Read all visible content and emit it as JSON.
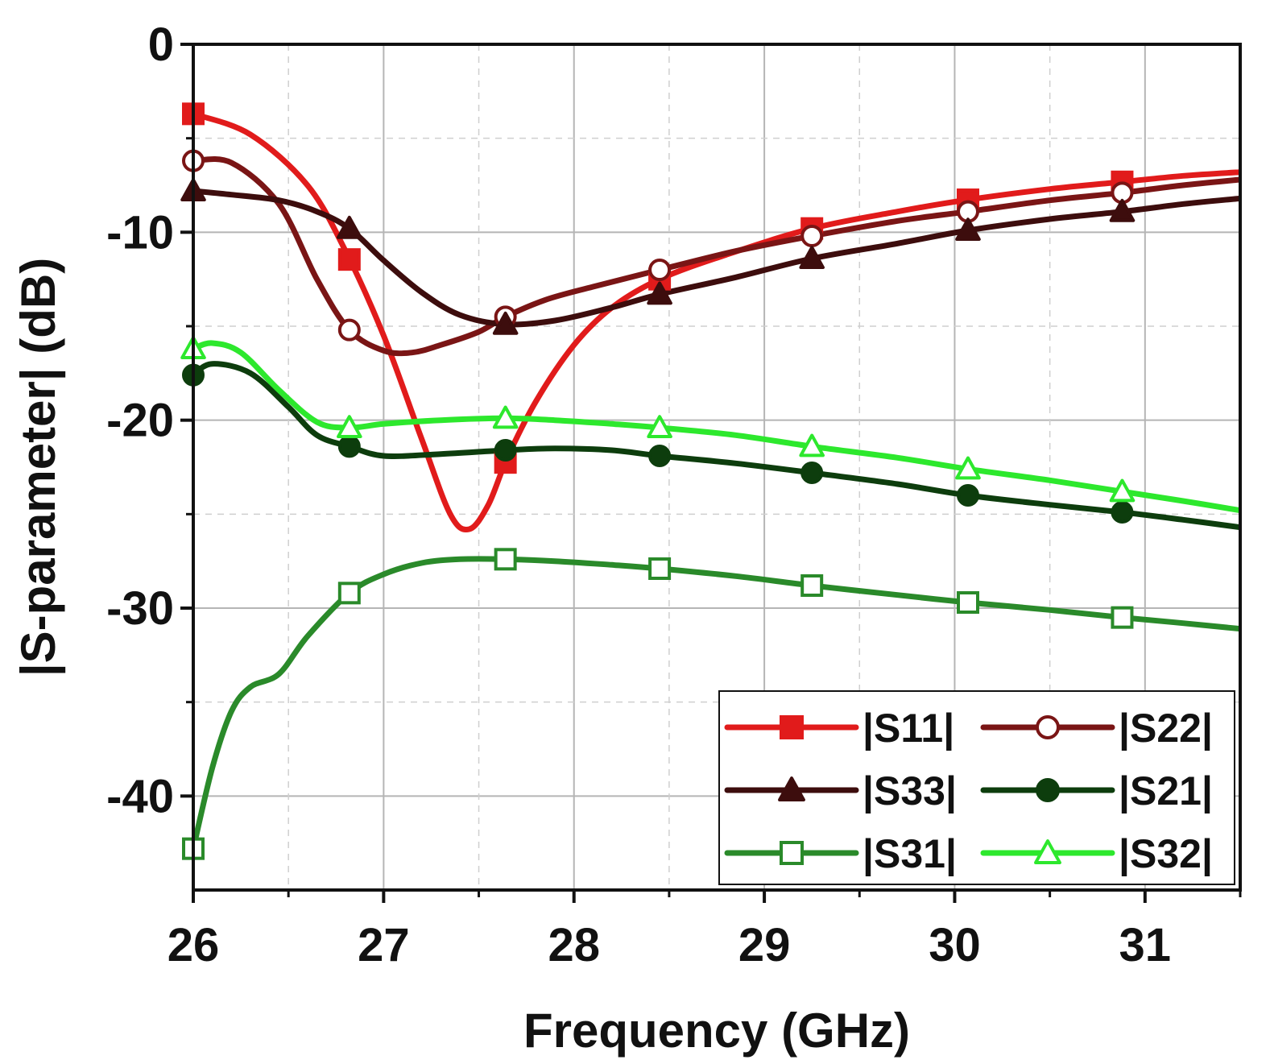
{
  "chart_data": {
    "type": "line",
    "title": "",
    "xlabel": "Frequency (GHz)",
    "ylabel": "|S-parameter| (dB)",
    "xlim": [
      26,
      31.5
    ],
    "ylim": [
      -45,
      0
    ],
    "xticks": [
      26,
      27,
      28,
      29,
      30,
      31
    ],
    "yticks": [
      0,
      -10,
      -20,
      -30,
      -40
    ],
    "x_minor_grid": [
      26.5,
      27.5,
      28.5,
      29.5,
      30.5,
      31.5
    ],
    "y_minor_grid": [
      -5,
      -15,
      -25,
      -35
    ],
    "grid": true,
    "legend": {
      "placement": "bottom-right",
      "columns": 2
    },
    "series": [
      {
        "name": "|S11|",
        "color": "#e11b1b",
        "marker": "square",
        "marker_fill": "filled",
        "x": [
          26.0,
          26.3,
          26.6,
          26.8,
          27.0,
          27.2,
          27.35,
          27.45,
          27.55,
          27.65,
          27.8,
          28.0,
          28.2,
          28.45,
          28.8,
          29.25,
          29.7,
          30.05,
          30.5,
          30.9,
          31.2,
          31.5
        ],
        "y": [
          -3.7,
          -4.8,
          -7.5,
          -11.0,
          -15.5,
          -21.0,
          -25.0,
          -25.8,
          -24.5,
          -22.0,
          -19.0,
          -16.0,
          -14.0,
          -12.5,
          -11.2,
          -9.8,
          -8.9,
          -8.3,
          -7.7,
          -7.3,
          -7.0,
          -6.8
        ],
        "marker_x": [
          26.0,
          26.82,
          27.64,
          28.45,
          29.25,
          30.07,
          30.88
        ]
      },
      {
        "name": "|S22|",
        "color": "#7a1515",
        "marker": "circle",
        "marker_fill": "open",
        "x": [
          26.0,
          26.2,
          26.45,
          26.65,
          26.82,
          27.0,
          27.15,
          27.3,
          27.5,
          27.64,
          27.85,
          28.1,
          28.45,
          28.85,
          29.25,
          29.7,
          30.07,
          30.5,
          30.88,
          31.2,
          31.5
        ],
        "y": [
          -6.2,
          -6.3,
          -8.5,
          -12.5,
          -15.2,
          -16.3,
          -16.4,
          -16.0,
          -15.3,
          -14.5,
          -13.6,
          -12.9,
          -12.0,
          -11.0,
          -10.2,
          -9.4,
          -8.9,
          -8.3,
          -7.9,
          -7.5,
          -7.2
        ],
        "marker_x": [
          26.0,
          26.82,
          27.64,
          28.45,
          29.25,
          30.07,
          30.88
        ]
      },
      {
        "name": "|S33|",
        "color": "#3d0d0d",
        "marker": "triangle",
        "marker_fill": "filled",
        "x": [
          26.0,
          26.2,
          26.45,
          26.65,
          26.82,
          27.0,
          27.2,
          27.4,
          27.64,
          27.9,
          28.2,
          28.45,
          28.85,
          29.25,
          29.7,
          30.07,
          30.5,
          30.88,
          31.2,
          31.5
        ],
        "y": [
          -7.8,
          -8.0,
          -8.3,
          -8.9,
          -9.8,
          -11.5,
          -13.2,
          -14.4,
          -14.9,
          -14.7,
          -14.0,
          -13.3,
          -12.4,
          -11.4,
          -10.6,
          -9.9,
          -9.3,
          -8.9,
          -8.5,
          -8.2
        ],
        "marker_x": [
          26.0,
          26.82,
          27.64,
          28.45,
          29.25,
          30.07,
          30.88
        ]
      },
      {
        "name": "|S21|",
        "color": "#0d3d0d",
        "marker": "circle",
        "marker_fill": "filled",
        "x": [
          26.0,
          26.1,
          26.3,
          26.5,
          26.65,
          26.82,
          27.0,
          27.3,
          27.64,
          27.9,
          28.2,
          28.45,
          28.85,
          29.25,
          29.7,
          30.07,
          30.5,
          30.88,
          31.2,
          31.5
        ],
        "y": [
          -17.6,
          -17.0,
          -17.5,
          -19.3,
          -20.8,
          -21.4,
          -21.9,
          -21.8,
          -21.6,
          -21.5,
          -21.6,
          -21.9,
          -22.3,
          -22.8,
          -23.4,
          -24.0,
          -24.5,
          -24.9,
          -25.3,
          -25.7
        ],
        "marker_x": [
          26.0,
          26.82,
          27.64,
          28.45,
          29.25,
          30.07,
          30.88
        ]
      },
      {
        "name": "|S31|",
        "color": "#2a8a2a",
        "marker": "square",
        "marker_fill": "open",
        "x": [
          26.0,
          26.1,
          26.2,
          26.3,
          26.45,
          26.6,
          26.82,
          27.0,
          27.2,
          27.4,
          27.64,
          27.9,
          28.2,
          28.45,
          28.85,
          29.25,
          29.7,
          30.07,
          30.5,
          30.88,
          31.2,
          31.5
        ],
        "y": [
          -42.8,
          -38.5,
          -35.5,
          -34.2,
          -33.5,
          -31.5,
          -29.2,
          -28.2,
          -27.6,
          -27.4,
          -27.4,
          -27.5,
          -27.7,
          -27.9,
          -28.3,
          -28.8,
          -29.3,
          -29.7,
          -30.1,
          -30.5,
          -30.8,
          -31.1
        ],
        "marker_x": [
          26.0,
          26.82,
          27.64,
          28.45,
          29.25,
          30.07,
          30.88
        ]
      },
      {
        "name": "|S32|",
        "color": "#2de82d",
        "marker": "triangle",
        "marker_fill": "open",
        "x": [
          26.0,
          26.1,
          26.25,
          26.45,
          26.65,
          26.82,
          27.0,
          27.3,
          27.64,
          27.9,
          28.2,
          28.45,
          28.85,
          29.25,
          29.7,
          30.07,
          30.5,
          30.88,
          31.2,
          31.5
        ],
        "y": [
          -16.2,
          -15.9,
          -16.4,
          -18.4,
          -20.1,
          -20.4,
          -20.2,
          -20.0,
          -19.9,
          -20.0,
          -20.2,
          -20.4,
          -20.8,
          -21.4,
          -22.0,
          -22.6,
          -23.2,
          -23.8,
          -24.3,
          -24.8
        ],
        "marker_x": [
          26.0,
          26.82,
          27.64,
          28.45,
          29.25,
          30.07,
          30.88
        ]
      }
    ]
  }
}
